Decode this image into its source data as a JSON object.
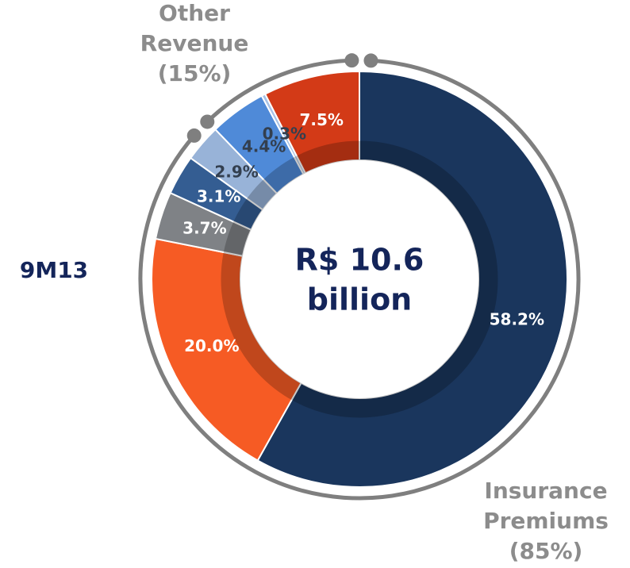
{
  "chart_data": {
    "type": "pie",
    "donut": true,
    "period_label": "9M13",
    "center_text": [
      "R$ 10.6",
      "billion"
    ],
    "groups": [
      {
        "label": [
          "Insurance",
          "Premiums",
          "(85%)"
        ]
      },
      {
        "label": [
          "Other",
          "Revenue",
          "(15%)"
        ]
      }
    ],
    "values": [
      58.2,
      20.0,
      3.7,
      3.1,
      2.9,
      4.4,
      0.3,
      7.5
    ],
    "value_labels": [
      "58.2%",
      "20.0%",
      "3.7%",
      "3.1%",
      "2.9%",
      "4.4%",
      "0.3%",
      "7.5%"
    ],
    "colors": [
      "#1a365d",
      "#f65b24",
      "#7f8286",
      "#345d92",
      "#98b3d8",
      "#4f8ad8",
      "#a8c2e6",
      "#d33a17"
    ],
    "label_colors": [
      "#ffffff",
      "#ffffff",
      "#ffffff",
      "#ffffff",
      "#333f4f",
      "#333f4f",
      "#333f4f",
      "#ffffff"
    ]
  }
}
